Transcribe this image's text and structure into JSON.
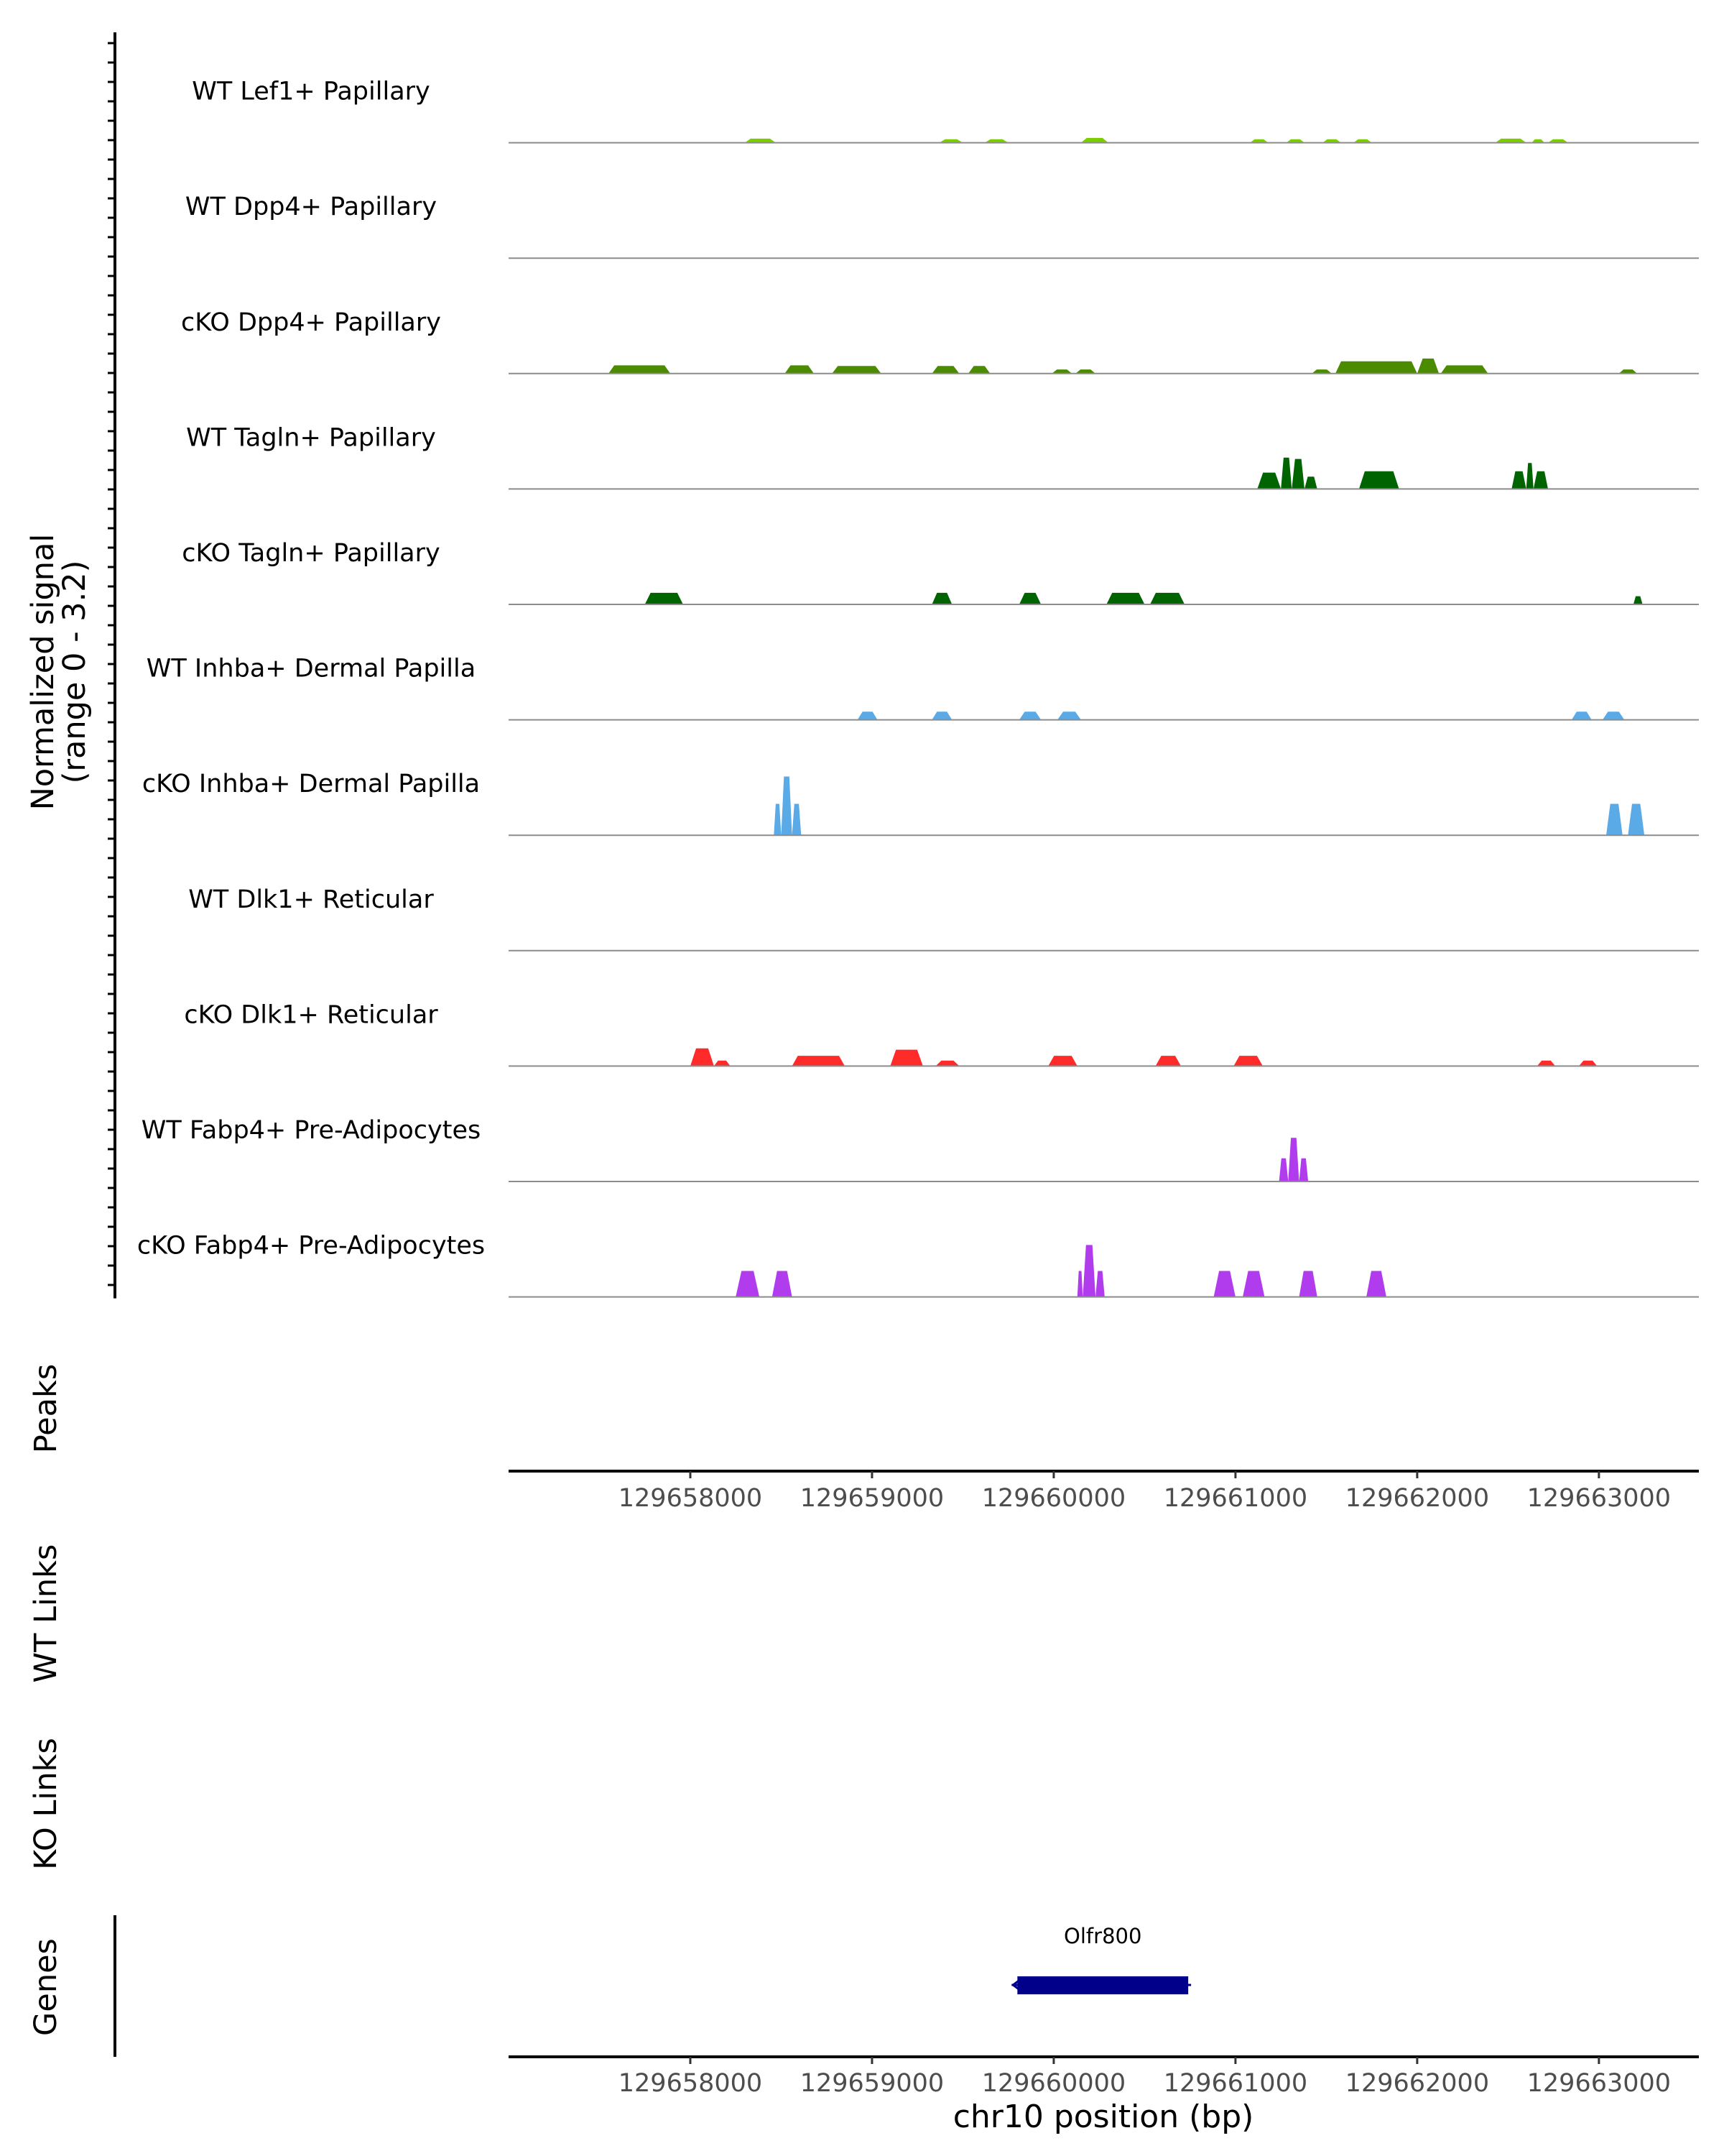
{
  "chart_data": {
    "type": "area",
    "subtype": "genome-coverage-track",
    "xlabel": "chr10 position (bp)",
    "xlim": [
      129657000,
      129663550
    ],
    "x_ticks": [
      129658000,
      129659000,
      129660000,
      129661000,
      129662000,
      129663000
    ],
    "x_tick_labels": [
      "129658000",
      "129659000",
      "129660000",
      "129661000",
      "129662000",
      "129663000"
    ],
    "signal_ylabel": [
      "Normalized signal",
      "(range 0 - 3.2)"
    ],
    "ylim": [
      0,
      3.2
    ],
    "tracks": [
      {
        "name": "WT Lef1+ Papillary",
        "color": "#7ccd00",
        "peaks": [
          [
            129658300,
            129658470,
            0.3
          ],
          [
            129659370,
            129659500,
            0.25
          ],
          [
            129659620,
            129659750,
            0.25
          ],
          [
            129660150,
            129660300,
            0.35
          ],
          [
            129661080,
            129661180,
            0.25
          ],
          [
            129661280,
            129661380,
            0.25
          ],
          [
            129661480,
            129661580,
            0.25
          ],
          [
            129661650,
            129661750,
            0.25
          ],
          [
            129662430,
            129662600,
            0.3
          ],
          [
            129662630,
            129662700,
            0.25
          ],
          [
            129662720,
            129662830,
            0.25
          ]
        ]
      },
      {
        "name": "WT Dpp4+ Papillary",
        "color": "#4a8b00",
        "peaks": []
      },
      {
        "name": "cKO Dpp4+ Papillary",
        "color": "#4a8b00",
        "peaks": [
          [
            129657550,
            129657890,
            0.6
          ],
          [
            129658520,
            129658680,
            0.6
          ],
          [
            129658780,
            129659050,
            0.55
          ],
          [
            129659330,
            129659480,
            0.55
          ],
          [
            129659530,
            129659650,
            0.55
          ],
          [
            129659990,
            129660100,
            0.3
          ],
          [
            129660120,
            129660230,
            0.3
          ],
          [
            129661420,
            129661530,
            0.3
          ],
          [
            129661550,
            129662000,
            0.9
          ],
          [
            129662000,
            129662120,
            1.1
          ],
          [
            129662130,
            129662390,
            0.6
          ],
          [
            129663110,
            129663210,
            0.3
          ]
        ]
      },
      {
        "name": "WT Tagln+ Papillary",
        "color": "#006400",
        "peaks": [
          [
            129661120,
            129661250,
            1.2
          ],
          [
            129661250,
            129661310,
            2.3
          ],
          [
            129661310,
            129661380,
            2.2
          ],
          [
            129661380,
            129661450,
            0.9
          ],
          [
            129661680,
            129661900,
            1.3
          ],
          [
            129662520,
            129662600,
            1.3
          ],
          [
            129662600,
            129662640,
            1.9
          ],
          [
            129662640,
            129662720,
            1.3
          ]
        ]
      },
      {
        "name": "cKO Tagln+ Papillary",
        "color": "#006400",
        "peaks": [
          [
            129657750,
            129657960,
            0.85
          ],
          [
            129659330,
            129659440,
            0.85
          ],
          [
            129659810,
            129659930,
            0.85
          ],
          [
            129660290,
            129660500,
            0.85
          ],
          [
            129660530,
            129660720,
            0.85
          ],
          [
            129663190,
            129663240,
            0.6
          ]
        ]
      },
      {
        "name": "WT Inhba+ Dermal Papilla",
        "color": "#5aaae8",
        "peaks": [
          [
            129658920,
            129659030,
            0.6
          ],
          [
            129659330,
            129659440,
            0.6
          ],
          [
            129659810,
            129659930,
            0.6
          ],
          [
            129660020,
            129660150,
            0.6
          ],
          [
            129662850,
            129662960,
            0.6
          ],
          [
            129663020,
            129663140,
            0.6
          ]
        ]
      },
      {
        "name": "cKO Inhba+ Dermal Papilla",
        "color": "#5aaae8",
        "peaks": [
          [
            129658460,
            129658500,
            2.3
          ],
          [
            129658500,
            129658560,
            4.3
          ],
          [
            129658560,
            129658610,
            2.3
          ],
          [
            129663040,
            129663130,
            2.3
          ],
          [
            129663160,
            129663250,
            2.3
          ]
        ]
      },
      {
        "name": "WT Dlk1+ Reticular",
        "color": "#ff2a2a",
        "peaks": []
      },
      {
        "name": "cKO Dlk1+ Reticular",
        "color": "#ff2a2a",
        "peaks": [
          [
            129658000,
            129658130,
            1.3
          ],
          [
            129658130,
            129658220,
            0.4
          ],
          [
            129658560,
            129658850,
            0.75
          ],
          [
            129659100,
            129659280,
            1.2
          ],
          [
            129659350,
            129659480,
            0.4
          ],
          [
            129659970,
            129660130,
            0.75
          ],
          [
            129660560,
            129660700,
            0.75
          ],
          [
            129660990,
            129661150,
            0.75
          ],
          [
            129662660,
            129662760,
            0.4
          ],
          [
            129662890,
            129662990,
            0.4
          ]
        ]
      },
      {
        "name": "WT Fabp4+ Pre-Adipocytes",
        "color": "#b03cee",
        "peaks": [
          [
            129661240,
            129661290,
            1.7
          ],
          [
            129661290,
            129661350,
            3.2
          ],
          [
            129661350,
            129661400,
            1.7
          ]
        ]
      },
      {
        "name": "cKO Fabp4+ Pre-Adipocytes",
        "color": "#b03cee",
        "peaks": [
          [
            129658250,
            129658380,
            1.9
          ],
          [
            129658450,
            129658560,
            1.9
          ],
          [
            129660130,
            129660160,
            1.9
          ],
          [
            129660160,
            129660230,
            3.8
          ],
          [
            129660230,
            129660280,
            1.9
          ],
          [
            129660880,
            129661000,
            1.9
          ],
          [
            129661040,
            129661160,
            1.9
          ],
          [
            129661350,
            129661450,
            1.9
          ],
          [
            129661720,
            129661830,
            1.9
          ]
        ]
      }
    ],
    "extra_tracks": [
      "Peaks",
      "WT Links",
      "KO Links",
      "Genes"
    ],
    "genes": [
      {
        "name": "Olfr800",
        "start": 129659800,
        "end": 129660740,
        "color": "#00008b"
      }
    ]
  }
}
